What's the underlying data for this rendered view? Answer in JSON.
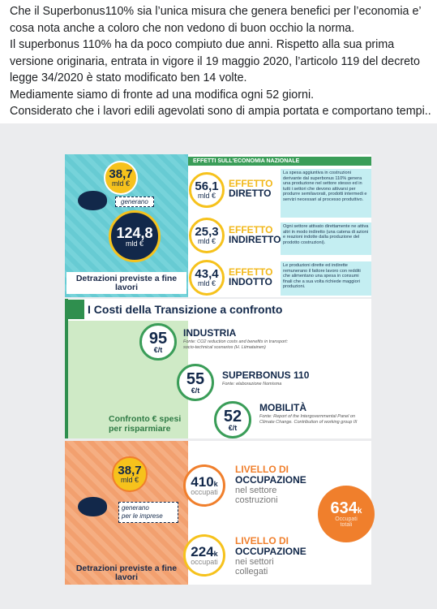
{
  "post": {
    "paragraphs": [
      "Che il Superbonus110% sia l’unica misura che genera benefici per l’economia e’ cosa nota anche a coloro che non vedono di buon occhio la norma.",
      "Il superbonus 110% ha da poco compiuto due anni. Rispetto alla sua prima versione originaria, entrata in vigore il 19 maggio 2020, l’articolo 119 del decreto legge 34/2020 è stato modificato ben 14 volte.",
      "Mediamente siamo di fronte ad una modifica ogni 52 giorni.",
      "Considerato che i lavori edili agevolati sono di ampia portata e comportano tempi..."
    ]
  },
  "infographic": {
    "economy": {
      "header": "EFFETTI SULL'ECONOMIA NAZIONALE",
      "amount": "38,7",
      "amount_unit": "mld €",
      "verb": "generano",
      "total": "124,8",
      "total_unit": "mld €",
      "caption": "Detrazioni previste a fine lavori",
      "effects": [
        {
          "value": "56,1",
          "unit": "mld €",
          "label_top": "EFFETTO",
          "label_bottom": "DIRETTO",
          "description": "La spesa aggiuntiva in costruzioni derivante dal superbonus 110% genera una produzione nel settore stesso ed in tutti i settori che devono attivarsi per produrre semilavorati, prodotti intermedi e servizi necessari al processo produttivo."
        },
        {
          "value": "25,3",
          "unit": "mld €",
          "label_top": "EFFETTO",
          "label_bottom": "INDIRETTO",
          "description": "Ogni settore attivato direttamente ne attiva altri in modo indiretto (una catena di azioni e reazioni indotte dalla produzione del prodotto costruzioni)."
        },
        {
          "value": "43,4",
          "unit": "mld €",
          "label_top": "EFFETTO",
          "label_bottom": "INDOTTO",
          "description": "Le produzioni dirette ed indirette remunerano il fattore lavoro con redditi che alimentano una spesa in consumi finali che a sua volta richiede maggiori produzioni."
        }
      ]
    },
    "costs": {
      "title": "I Costi della Transizione a confronto",
      "side_caption": "Confronto € spesi per risparmiare",
      "items": [
        {
          "value": "95",
          "unit": "€/t",
          "label": "INDUSTRIA",
          "source": "Fonte: CO2 reduction costs and benefits in transport: socio-technical scenarios (H. Liimatainen)"
        },
        {
          "value": "55",
          "unit": "€/t",
          "label": "SUPERBONUS 110",
          "source": "Fonte: elaborazione Nomisma"
        },
        {
          "value": "52",
          "unit": "€/t",
          "label": "MOBILITÀ",
          "source": "Fonte: Report of the Intergovernmental Panel on Climate Change. Contribution of working group III"
        }
      ]
    },
    "jobs": {
      "amount": "38,7",
      "amount_unit": "mld €",
      "verb": "generano",
      "verb_detail": "per le imprese",
      "caption": "Detrazioni previste a fine lavori",
      "rows": [
        {
          "value": "410",
          "suffix": "k",
          "unit": "occupati",
          "title_top": "LIVELLO DI",
          "title_bottom": "OCCUPAZIONE",
          "detail": "nel settore costruzioni"
        },
        {
          "value": "224",
          "suffix": "k",
          "unit": "occupati",
          "title_top": "LIVELLO DI",
          "title_bottom": "OCCUPAZIONE",
          "detail": "nei settori collegati"
        }
      ],
      "total": {
        "value": "634",
        "suffix": "k",
        "label": "Occupati totali"
      }
    }
  }
}
